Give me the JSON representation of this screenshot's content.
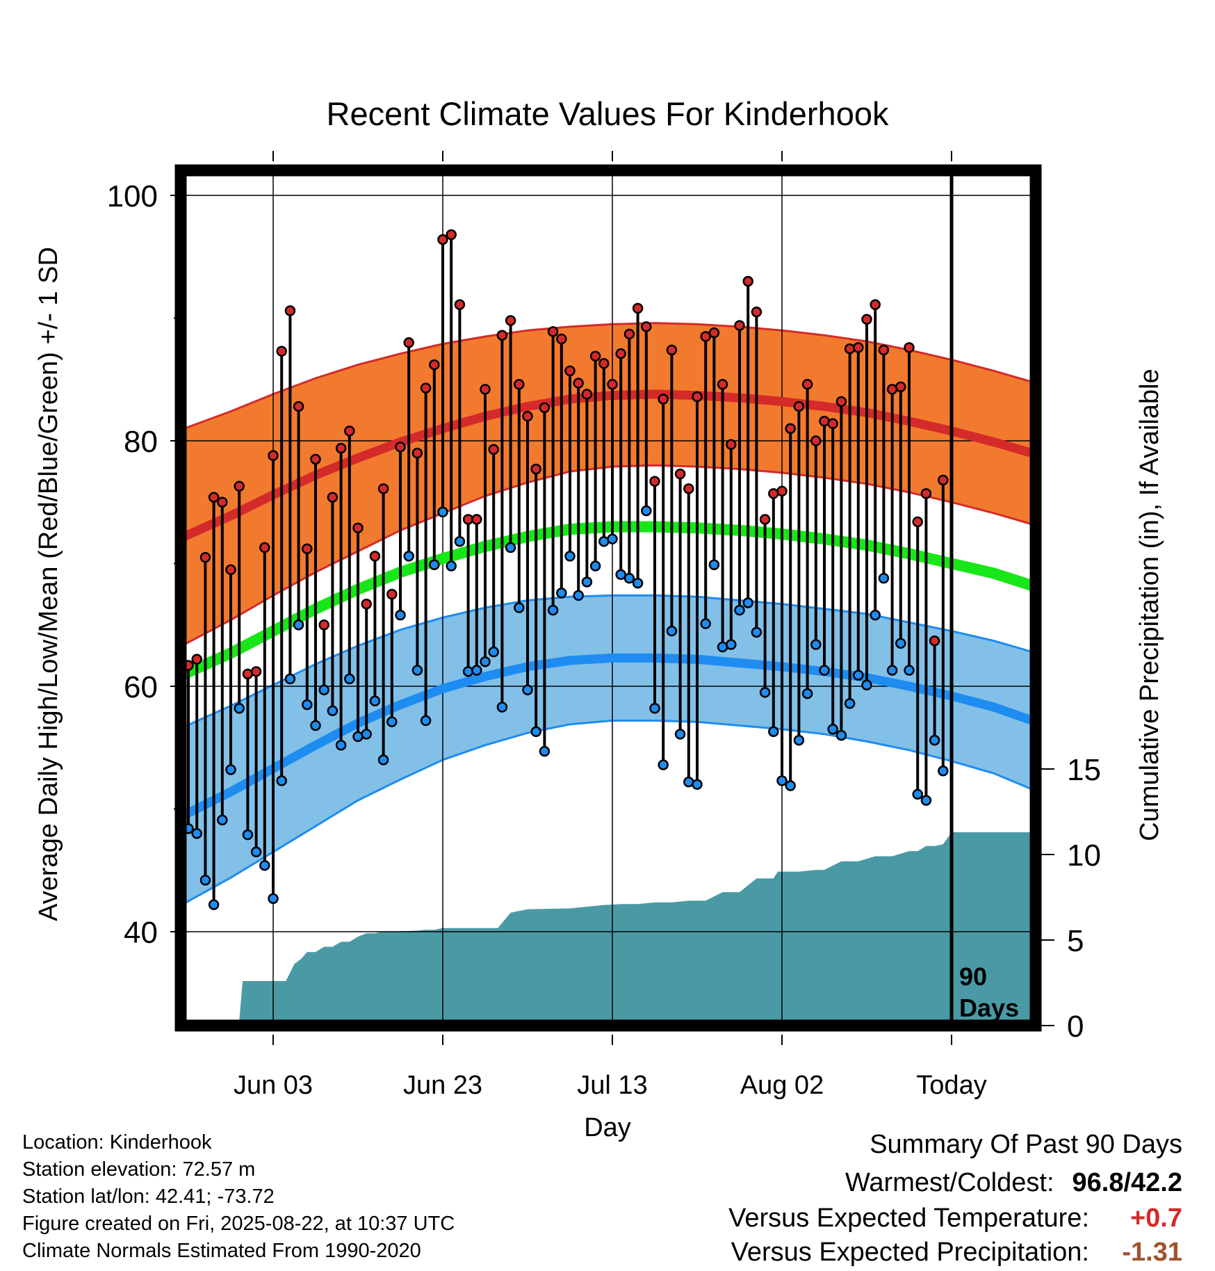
{
  "chart_data": {
    "type": "line",
    "title": "Recent Climate Values For Kinderhook",
    "xlabel": "Day",
    "ylabel": "Average Daily High/Low/Mean (Red/Blue/Green) +/- 1 SD",
    "y2label": "Cumulative Precipitation (in), If Available",
    "ylim": [
      33,
      102
    ],
    "yticks": [
      40,
      60,
      80,
      100
    ],
    "y2lim": [
      0,
      46.9
    ],
    "y2ticks": [
      0,
      5,
      10,
      15
    ],
    "xlim": [
      -11.3,
      90.1
    ],
    "xticks": [
      {
        "day": 0,
        "label": "Jun 03"
      },
      {
        "day": 20,
        "label": "Jun 23"
      },
      {
        "day": 40,
        "label": "Jul 13"
      },
      {
        "day": 60,
        "label": "Aug 02"
      },
      {
        "day": 80,
        "label": "Today"
      }
    ],
    "grid": true,
    "today_marker": {
      "day": 80,
      "label_line1": "90",
      "label_line2": "Days"
    },
    "normal_high": {
      "name": "Red",
      "color": "#d42a2a",
      "band_color": "#f27a2e",
      "days": [
        -10.5,
        -5,
        0,
        5,
        10,
        15,
        20,
        25,
        30,
        35,
        40,
        45,
        50,
        55,
        60,
        65,
        70,
        75,
        80,
        85,
        89.5
      ],
      "mean": [
        72.2,
        73.9,
        75.6,
        77.2,
        78.6,
        79.9,
        81.0,
        82.0,
        82.8,
        83.4,
        83.7,
        83.8,
        83.7,
        83.5,
        83.2,
        82.8,
        82.3,
        81.6,
        80.8,
        79.9,
        79.0
      ],
      "sd": [
        8.8,
        8.5,
        8.2,
        7.9,
        7.6,
        7.2,
        6.9,
        6.5,
        6.2,
        5.9,
        5.8,
        5.8,
        5.8,
        5.8,
        5.8,
        5.8,
        5.8,
        5.8,
        5.8,
        5.8,
        5.8
      ]
    },
    "normal_low": {
      "name": "Blue",
      "color": "#1e8cf0",
      "band_color": "#82c0e8",
      "days": [
        -10.5,
        -5,
        0,
        5,
        10,
        15,
        20,
        25,
        30,
        35,
        40,
        45,
        50,
        55,
        60,
        65,
        70,
        75,
        80,
        85,
        89.5
      ],
      "mean": [
        49.5,
        51.4,
        53.3,
        55.2,
        57.0,
        58.5,
        59.8,
        60.8,
        61.6,
        62.1,
        62.3,
        62.3,
        62.2,
        61.9,
        61.6,
        61.2,
        60.7,
        60.0,
        59.2,
        58.3,
        57.2
      ],
      "sd": [
        7.2,
        7.0,
        6.8,
        6.6,
        6.3,
        6.1,
        5.8,
        5.6,
        5.4,
        5.2,
        5.1,
        5.1,
        5.1,
        5.1,
        5.1,
        5.1,
        5.2,
        5.2,
        5.3,
        5.4,
        5.6
      ]
    },
    "normal_mean": {
      "name": "Green",
      "color": "#19e619",
      "days": [
        -10.5,
        -5,
        0,
        5,
        10,
        15,
        20,
        25,
        30,
        35,
        40,
        45,
        50,
        55,
        60,
        65,
        70,
        75,
        80,
        85,
        89.5
      ],
      "values": [
        61.0,
        62.7,
        64.5,
        66.3,
        67.9,
        69.3,
        70.4,
        71.4,
        72.2,
        72.8,
        73.0,
        73.0,
        72.9,
        72.7,
        72.4,
        72.0,
        71.5,
        70.8,
        70.0,
        69.2,
        68.2
      ]
    },
    "observed": {
      "high_color": "#d42a2a",
      "low_color": "#1e8cf0",
      "start_day": -10,
      "step": 1,
      "high": [
        61.7,
        62.2,
        70.5,
        75.4,
        75.0,
        69.5,
        76.3,
        61.0,
        61.2,
        71.3,
        78.8,
        87.3,
        90.6,
        82.8,
        71.2,
        78.5,
        65.0,
        75.4,
        79.4,
        80.8,
        72.9,
        66.7,
        70.6,
        76.1,
        67.5,
        79.5,
        88.0,
        79.0,
        84.3,
        86.2,
        96.4,
        96.8,
        91.1,
        73.6,
        73.6,
        84.2,
        79.3,
        88.6,
        89.8,
        84.6,
        82.0,
        77.7,
        82.7,
        88.9,
        88.3,
        85.7,
        84.7,
        83.8,
        86.9,
        86.3,
        84.6,
        87.1,
        88.7,
        90.8,
        89.3,
        76.7,
        83.4,
        87.4,
        77.3,
        76.1,
        83.6,
        88.5,
        88.8,
        84.6,
        79.7,
        89.4,
        93.0,
        90.5,
        73.6,
        75.7,
        75.9,
        81.0,
        82.8,
        84.6,
        80.0,
        81.6,
        81.4,
        83.2,
        87.5,
        87.6,
        89.9,
        91.1,
        87.4,
        84.2,
        84.4,
        87.6,
        73.4,
        75.7,
        63.7,
        76.8
      ],
      "low": [
        48.4,
        48.0,
        44.2,
        42.2,
        49.1,
        53.2,
        58.2,
        47.9,
        46.5,
        45.4,
        42.7,
        52.3,
        60.6,
        65.0,
        58.5,
        56.8,
        59.7,
        58.0,
        55.2,
        60.6,
        55.9,
        56.1,
        58.8,
        54.0,
        57.1,
        65.8,
        70.6,
        61.3,
        57.2,
        69.9,
        74.2,
        69.8,
        71.8,
        61.2,
        61.3,
        62.0,
        62.8,
        58.3,
        71.3,
        66.4,
        59.7,
        56.3,
        54.7,
        66.2,
        67.6,
        70.6,
        67.4,
        68.5,
        69.8,
        71.8,
        72.0,
        69.1,
        68.8,
        68.4,
        74.3,
        58.2,
        53.6,
        64.5,
        56.1,
        52.2,
        52.0,
        65.1,
        69.9,
        63.2,
        63.4,
        66.2,
        66.8,
        64.4,
        59.5,
        56.3,
        52.3,
        51.9,
        55.6,
        59.4,
        63.4,
        61.3,
        56.5,
        56.0,
        58.6,
        60.9,
        60.1,
        65.8,
        68.8,
        61.3,
        63.5,
        61.3,
        51.2,
        50.7,
        55.6,
        53.1
      ]
    },
    "precipitation": {
      "color": "#4a9aa5",
      "days": [
        -10.5,
        -4.05,
        -4,
        -3.6,
        1.5,
        1.9,
        2.5,
        3.3,
        4,
        5,
        6,
        7,
        8,
        9,
        10,
        11,
        12,
        13,
        14,
        17,
        18,
        19,
        20,
        26.5,
        28,
        30,
        35,
        37,
        39,
        41,
        43,
        45,
        47,
        49,
        51,
        53,
        55,
        57,
        59,
        59.5,
        60.5,
        62,
        64,
        65,
        67,
        69,
        71,
        72,
        73,
        75,
        76,
        77,
        78,
        79,
        80,
        89.5
      ],
      "values": [
        0,
        0,
        0.3,
        2.6,
        2.6,
        3.0,
        3.6,
        3.9,
        4.3,
        4.3,
        4.6,
        4.6,
        4.9,
        4.9,
        5.2,
        5.4,
        5.4,
        5.5,
        5.5,
        5.55,
        5.6,
        5.6,
        5.7,
        5.7,
        6.6,
        6.8,
        6.85,
        6.95,
        7.05,
        7.1,
        7.1,
        7.2,
        7.2,
        7.3,
        7.3,
        7.8,
        7.8,
        8.6,
        8.6,
        9.0,
        9.0,
        9.0,
        9.1,
        9.1,
        9.6,
        9.6,
        9.9,
        9.9,
        9.9,
        10.2,
        10.2,
        10.5,
        10.5,
        10.6,
        11.3,
        11.3
      ]
    }
  },
  "metadata_text": [
    "Location: Kinderhook",
    "Station elevation: 72.57 m",
    "Station lat/lon: 42.41; -73.72",
    "Figure created on Fri, 2025-08-22, at 10:37 UTC",
    "Climate Normals Estimated From 1990-2020"
  ],
  "summary": {
    "title": "Summary Of Past 90 Days",
    "warmest_coldest_label": "Warmest/Coldest:",
    "warmest_coldest_value": "96.8/42.2",
    "temp_label": "Versus Expected Temperature:",
    "temp_value": "+0.7",
    "temp_color": "#d42a2a",
    "precip_label": "Versus Expected Precipitation:",
    "precip_value": "-1.31",
    "precip_color": "#a0522d"
  }
}
